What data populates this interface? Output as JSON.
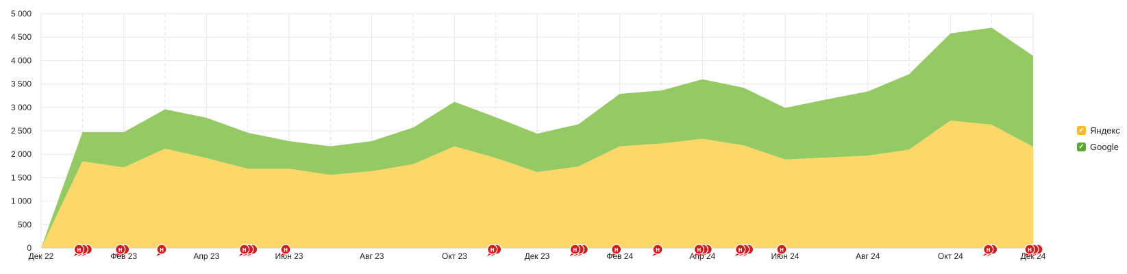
{
  "chart_data": {
    "type": "area",
    "stacked": true,
    "title": "",
    "xlabel": "",
    "ylabel": "",
    "ylim": [
      0,
      5000
    ],
    "y_ticks": [
      0,
      500,
      1000,
      1500,
      2000,
      2500,
      3000,
      3500,
      4000,
      4500,
      5000
    ],
    "y_tick_labels": [
      "0",
      "500",
      "1 000",
      "1 500",
      "2 000",
      "2 500",
      "3 000",
      "3 500",
      "4 000",
      "4 500",
      "5 000"
    ],
    "x_labels": [
      "Дек 22",
      "Фев 23",
      "Апр 23",
      "Июн 23",
      "Авг 23",
      "Окт 23",
      "Дек 23",
      "Фев 24",
      "Апр 24",
      "Июн 24",
      "Авг 24",
      "Окт 24",
      "Дек 24"
    ],
    "categories": [
      "Дек 22",
      "Янв 23",
      "Фев 23",
      "Мар 23",
      "Апр 23",
      "Май 23",
      "Июн 23",
      "Июл 23",
      "Авг 23",
      "Сен 23",
      "Окт 23",
      "Ноя 23",
      "Дек 23",
      "Янв 24",
      "Фев 24",
      "Мар 24",
      "Апр 24",
      "Май 24",
      "Июн 24",
      "Июл 24",
      "Авг 24",
      "Сен 24",
      "Окт 24",
      "Ноя 24",
      "Дек 24"
    ],
    "series": [
      {
        "name": "Яндекс",
        "color": "#fdd868",
        "values": [
          0,
          1850,
          1720,
          2120,
          1920,
          1690,
          1690,
          1560,
          1640,
          1790,
          2170,
          1920,
          1620,
          1740,
          2170,
          2230,
          2330,
          2190,
          1890,
          1930,
          1970,
          2100,
          2720,
          2630,
          2160
        ]
      },
      {
        "name": "Google",
        "color": "#95c963",
        "values": [
          0,
          620,
          750,
          840,
          860,
          770,
          590,
          610,
          640,
          780,
          950,
          870,
          820,
          900,
          1120,
          1130,
          1270,
          1230,
          1100,
          1240,
          1370,
          1610,
          1860,
          2070,
          1940
        ]
      }
    ],
    "grid": true,
    "legend_position": "right",
    "annotations": {
      "icon": "note-marker-icon",
      "marker_letter": "н",
      "marker_color": "#cc1f1f",
      "groups": [
        {
          "month": "Янв 23",
          "count": 3
        },
        {
          "month": "Фев 23",
          "count": 2
        },
        {
          "month": "Мар 23",
          "count": 1
        },
        {
          "month": "Май 23",
          "count": 3
        },
        {
          "month": "Июн 23",
          "count": 1
        },
        {
          "month": "Ноя 23",
          "count": 2
        },
        {
          "month": "Янв 24",
          "count": 3
        },
        {
          "month": "Фев 24",
          "count": 1
        },
        {
          "month": "Мар 24",
          "count": 1
        },
        {
          "month": "Апр 24",
          "count": 3
        },
        {
          "month": "Май 24",
          "count": 3
        },
        {
          "month": "Июн 24",
          "count": 1
        },
        {
          "month": "Ноя 24",
          "count": 2
        },
        {
          "month": "Дек 24",
          "count": 3
        }
      ]
    }
  },
  "legend": {
    "items": [
      {
        "label": "Яндекс",
        "color": "#fdb827"
      },
      {
        "label": "Google",
        "color": "#5aa832"
      }
    ]
  }
}
